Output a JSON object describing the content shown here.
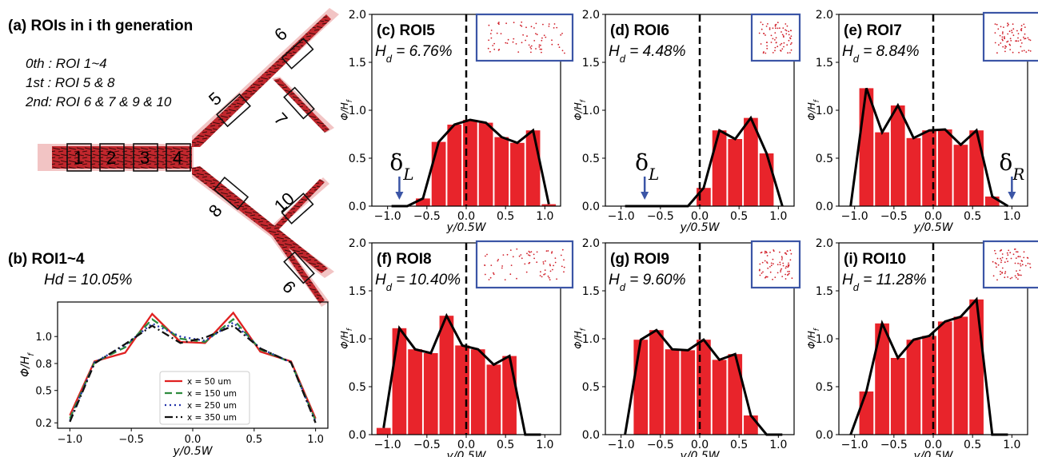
{
  "figure": {
    "panel_a": {
      "title": "(a) ROIs in i th generation",
      "generations": [
        "0th : ROI 1~4",
        "1st : ROI 5 & 8",
        "2nd: ROI 6 & 7 & 9 & 10"
      ],
      "roi_labels": [
        "1",
        "2",
        "3",
        "4",
        "5",
        "6",
        "7",
        "8",
        "9",
        "10"
      ]
    },
    "panel_b": {
      "title": "(b) ROI1~4",
      "hd": "Hd = 10.05%"
    }
  },
  "chart_data": [
    {
      "id": "b",
      "type": "line",
      "xlabel": "y/0.5W",
      "ylabel": "Φ/Hf",
      "xlim": [
        -1.1,
        1.1
      ],
      "ylim": [
        0.15,
        1.32
      ],
      "xticks": [
        "-1.0",
        "-0.5",
        "0.0",
        "0.5",
        "1.0"
      ],
      "yticks": [
        "0.2",
        "0.5",
        "0.8",
        "1.0"
      ],
      "ytick_values": [
        0.2,
        0.5,
        0.75,
        1.0
      ],
      "legend_position": "center-right",
      "x": [
        -1.0,
        -0.8,
        -0.55,
        -0.33,
        -0.1,
        0.1,
        0.33,
        0.55,
        0.8,
        1.0
      ],
      "series": [
        {
          "name": "x = 50 um",
          "color": "#e02020",
          "dash": "solid",
          "values": [
            0.27,
            0.77,
            0.85,
            1.21,
            0.95,
            0.94,
            1.22,
            0.86,
            0.77,
            0.24
          ]
        },
        {
          "name": "x = 150 um",
          "color": "#2e8b3e",
          "dash": "dashed",
          "values": [
            0.24,
            0.76,
            0.9,
            1.16,
            0.98,
            0.95,
            1.16,
            0.88,
            0.76,
            0.22
          ]
        },
        {
          "name": "x = 250 um",
          "color": "#2233aa",
          "dash": "dotted",
          "values": [
            0.22,
            0.76,
            0.92,
            1.12,
            1.0,
            0.96,
            1.13,
            0.89,
            0.76,
            0.21
          ]
        },
        {
          "name": "x = 350 um",
          "color": "#111111",
          "dash": "dashdot",
          "values": [
            0.21,
            0.75,
            0.93,
            1.1,
            0.94,
            0.99,
            1.1,
            0.89,
            0.76,
            0.2
          ]
        }
      ]
    },
    {
      "id": "c",
      "type": "bar",
      "title": "(c) ROI5",
      "hd": "Hd = 6.76%",
      "xlabel": "y/0.5W",
      "ylabel": "Φ/Hf",
      "xlim": [
        -1.2,
        1.2
      ],
      "ylim": [
        0,
        2.0
      ],
      "annotation": "δL",
      "annotation_x": -0.85,
      "x": [
        -0.95,
        -0.75,
        -0.55,
        -0.35,
        -0.15,
        0.05,
        0.25,
        0.45,
        0.65,
        0.85,
        1.05
      ],
      "values": [
        0,
        0,
        0.08,
        0.67,
        0.85,
        0.9,
        0.87,
        0.72,
        0.66,
        0.79,
        0.02
      ],
      "line": [
        0,
        0,
        0.08,
        0.67,
        0.85,
        0.9,
        0.87,
        0.72,
        0.66,
        0.79,
        0.02
      ]
    },
    {
      "id": "d",
      "type": "bar",
      "title": "(d) ROI6",
      "hd": "Hd = 4.48%",
      "xlabel": "y/0.5W",
      "ylabel": "Φ/Hf",
      "xlim": [
        -1.2,
        1.2
      ],
      "ylim": [
        0,
        2.0
      ],
      "annotation": "δL",
      "annotation_x": -0.7,
      "x": [
        -0.95,
        -0.75,
        -0.55,
        -0.35,
        -0.15,
        0.05,
        0.25,
        0.45,
        0.65,
        0.85,
        1.05
      ],
      "values": [
        0,
        0,
        0,
        0,
        0,
        0.19,
        0.79,
        0.7,
        0.92,
        0.55,
        0
      ],
      "line": [
        0,
        0,
        0,
        0,
        0,
        0.19,
        0.79,
        0.7,
        0.92,
        0.55,
        0
      ]
    },
    {
      "id": "e",
      "type": "bar",
      "title": "(e) ROI7",
      "hd": "Hd = 8.84%",
      "xlabel": "y/0.5W",
      "ylabel": "Φ/Hf",
      "xlim": [
        -1.2,
        1.2
      ],
      "ylim": [
        0,
        2.0
      ],
      "annotation": "δR",
      "annotation_x": 1.0,
      "x": [
        -1.05,
        -0.85,
        -0.65,
        -0.45,
        -0.25,
        -0.05,
        0.15,
        0.35,
        0.55,
        0.75,
        0.95
      ],
      "values": [
        0,
        1.23,
        0.77,
        1.05,
        0.71,
        0.79,
        0.8,
        0.64,
        0.79,
        0.1,
        0
      ],
      "line": [
        0,
        1.23,
        0.77,
        1.05,
        0.71,
        0.79,
        0.8,
        0.64,
        0.79,
        0.1,
        0
      ]
    },
    {
      "id": "f",
      "type": "bar",
      "title": "(f) ROI8",
      "hd": "Hd = 10.40%",
      "xlabel": "y/0.5W",
      "ylabel": "Φ/Hf",
      "xlim": [
        -1.2,
        1.2
      ],
      "ylim": [
        0,
        2.0
      ],
      "x": [
        -1.05,
        -0.85,
        -0.65,
        -0.45,
        -0.25,
        -0.05,
        0.15,
        0.35,
        0.55,
        0.75,
        0.95
      ],
      "values": [
        0.07,
        1.11,
        0.89,
        0.85,
        1.24,
        0.93,
        0.89,
        0.73,
        0.82,
        0,
        0
      ],
      "line": [
        0.07,
        1.11,
        0.89,
        0.85,
        1.24,
        0.93,
        0.89,
        0.73,
        0.82,
        0,
        0
      ]
    },
    {
      "id": "g",
      "type": "bar",
      "title": "(g) ROI9",
      "hd": "Hd = 9.60%",
      "xlabel": "y/0.5W",
      "ylabel": "Φ/Hf",
      "xlim": [
        -1.2,
        1.2
      ],
      "ylim": [
        0,
        2.0
      ],
      "x": [
        -0.95,
        -0.75,
        -0.55,
        -0.35,
        -0.15,
        0.05,
        0.25,
        0.45,
        0.65,
        0.85,
        1.05
      ],
      "values": [
        0,
        0.99,
        1.09,
        0.89,
        0.88,
        0.99,
        0.78,
        0.84,
        0.2,
        0,
        0
      ],
      "line": [
        0,
        0.99,
        1.09,
        0.89,
        0.88,
        0.99,
        0.78,
        0.84,
        0.2,
        0,
        0
      ]
    },
    {
      "id": "i",
      "type": "bar",
      "title": "(i) ROI10",
      "hd": "Hd = 11.28%",
      "xlabel": "y/0.5W",
      "ylabel": "Φ/Hf",
      "xlim": [
        -1.2,
        1.2
      ],
      "ylim": [
        0,
        2.0
      ],
      "x": [
        -1.05,
        -0.85,
        -0.65,
        -0.45,
        -0.25,
        -0.05,
        0.15,
        0.35,
        0.55,
        0.75,
        0.95
      ],
      "values": [
        0,
        0.45,
        1.16,
        0.8,
        0.99,
        1.03,
        1.18,
        1.23,
        1.41,
        0,
        0
      ],
      "line": [
        0,
        0.45,
        1.16,
        0.8,
        0.99,
        1.03,
        1.18,
        1.23,
        1.41,
        0,
        0
      ]
    }
  ]
}
